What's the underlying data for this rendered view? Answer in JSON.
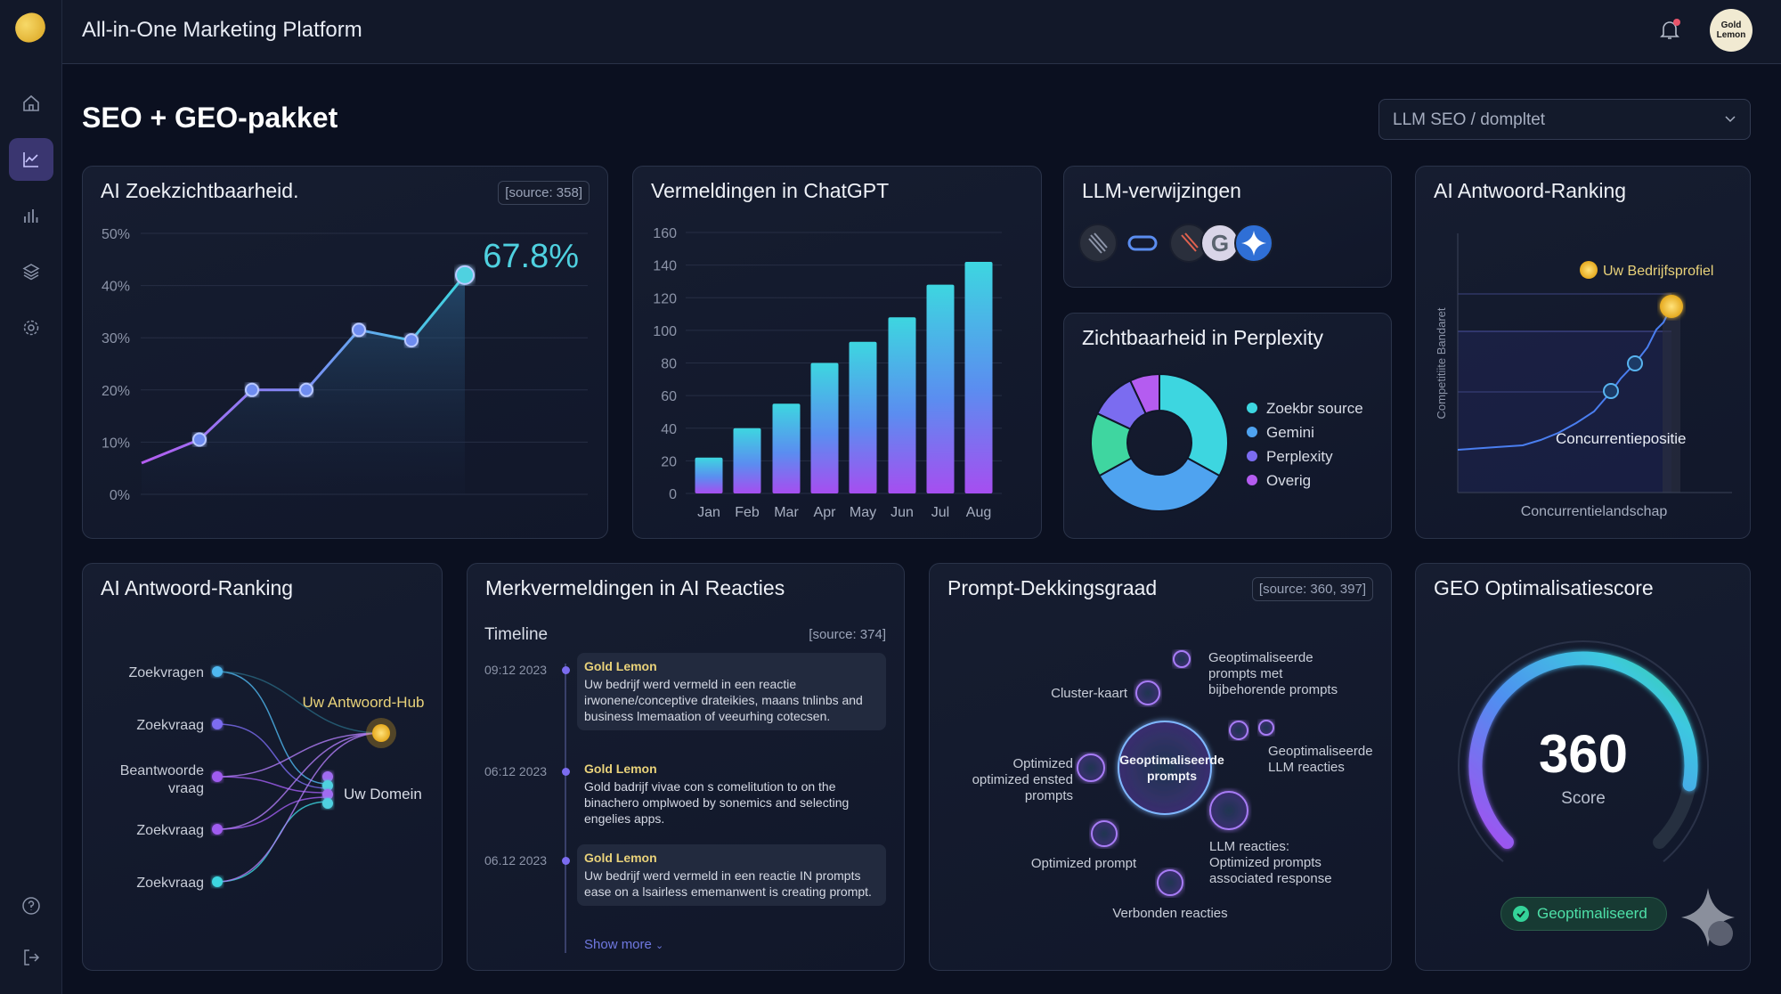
{
  "app": {
    "title": "All-in-One Marketing Platform",
    "avatar_text": "Gold Lemon"
  },
  "page": {
    "title": "SEO + GEO-pakket",
    "dropdown_value": "LLM SEO / dompltet"
  },
  "sidebar": {
    "items": [
      "home",
      "analytics",
      "bar-chart",
      "layers",
      "settings",
      "help",
      "logout"
    ],
    "active": "analytics"
  },
  "colors": {
    "accent": "#7b6cf0",
    "cyan": "#3dd6e0",
    "gold": "#f5c542",
    "green": "#34d399",
    "bg": "#0b1020"
  },
  "cards": {
    "visibility": {
      "title": "AI Zoekzichtbaarheid.",
      "source": "[source: 358]",
      "highlight": "67.8%"
    },
    "chatgpt": {
      "title": "Vermeldingen in ChatGPT"
    },
    "referrals": {
      "title": "LLM-verwijzingen",
      "icons": [
        "perplexity-icon",
        "link-icon",
        "perplexity-color-icon",
        "google-icon",
        "gemini-icon"
      ]
    },
    "perplexity": {
      "title": "Zichtbaarheid in Perplexity"
    },
    "ranking": {
      "title": "AI Antwoord-Ranking",
      "ylabel": "Competitiite Bandaret",
      "xlabel": "Concurrentielandschap",
      "profile_label": "Uw Bedrijfsprofiel",
      "position_label": "Concurrentiepositie"
    },
    "answer_network": {
      "title": "AI Antwoord-Ranking",
      "nodes": [
        "Zoekvragen",
        "Zoekvraag",
        "Beantwoorde vraag",
        "Zoekvraag",
        "Zoekvraag"
      ],
      "hub": "Uw Antwoord-Hub",
      "domain": "Uw Domein"
    },
    "mentions": {
      "title": "Merkvermeldingen in AI Reacties",
      "timeline_label": "Timeline",
      "source": "[source: 374]",
      "show_more": "Show more",
      "entries": [
        {
          "date": "09:12 2023",
          "name": "Gold Lemon",
          "text": "Uw bedrijf werd vermeld in een reactie irwonene/conceptive drateikies, maans tnlinbs and business lmemaation of veeurhing cotecsen."
        },
        {
          "date": "06:12 2023",
          "name": "Gold Lemon",
          "text": "Gold badrijf vivae con s comelitution to on the binachero omplwoed by sonemics and selecting engelies apps."
        },
        {
          "date": "06.12 2023",
          "name": "Gold Lemon",
          "text": "Uw bedrijf werd vermeld in een reactie IN prompts ease on a lsairless ememanwent is creating prompt."
        }
      ]
    },
    "prompt_coverage": {
      "title": "Prompt-Dekkingsgraad",
      "source": "[source: 360, 397]",
      "center": "Geoptimaliseerde prompts",
      "labels": {
        "cluster": "Cluster-kaart",
        "top": "Geoptimaliseerde prompts met bijbehorende prompts",
        "llm": "Geoptimaliseerde LLM reacties",
        "left": "Optimized optimized ensted prompts",
        "reacties": "LLM reacties: Optimized prompts associated response",
        "prompt": "Optimized prompt",
        "verbonden": "Verbonden reacties"
      }
    },
    "geo_score": {
      "title": "GEO Optimalisatiescore",
      "score": "360",
      "score_label": "Score",
      "badge": "Geoptimaliseerd",
      "gauge_fill": 0.87
    }
  },
  "chart_data": [
    {
      "type": "line",
      "title": "AI Zoekzichtbaarheid.",
      "x": [
        0,
        1,
        2,
        3,
        4,
        5,
        6
      ],
      "values": [
        6,
        10.5,
        20,
        20,
        31.5,
        29.5,
        42
      ],
      "yticks": [
        "0%",
        "10%",
        "20%",
        "30%",
        "40%",
        "50%"
      ],
      "ylim": [
        0,
        50
      ],
      "ylabel": "",
      "xlabel": ""
    },
    {
      "type": "bar",
      "title": "Vermeldingen in ChatGPT",
      "categories": [
        "Jan",
        "Feb",
        "Mar",
        "Apr",
        "May",
        "Jun",
        "Jul",
        "Aug"
      ],
      "values": [
        22,
        40,
        55,
        80,
        93,
        108,
        128,
        142
      ],
      "yticks": [
        "0",
        "20",
        "40",
        "60",
        "80",
        "100",
        "120",
        "140",
        "160"
      ],
      "ylim": [
        0,
        160
      ]
    },
    {
      "type": "pie",
      "title": "Zichtbaarheid in Perplexity",
      "series": [
        {
          "name": "Zoekbr source",
          "value": 33,
          "color": "#3dd6e0"
        },
        {
          "name": "Gemini",
          "value": 34,
          "color": "#4fa3f0"
        },
        {
          "name": "",
          "value": 15,
          "color": "#3fd6a0"
        },
        {
          "name": "Perplexity",
          "value": 11,
          "color": "#7b6cf0"
        },
        {
          "name": "Overig",
          "value": 7,
          "color": "#b45cf0"
        }
      ],
      "legend": [
        "Zoekbr source",
        "Gemini",
        "Perplexity",
        "Overig"
      ],
      "legend_colors": [
        "#3dd6e0",
        "#4fa3f0",
        "#7b6cf0",
        "#b45cf0"
      ],
      "legend_position": "right"
    }
  ]
}
